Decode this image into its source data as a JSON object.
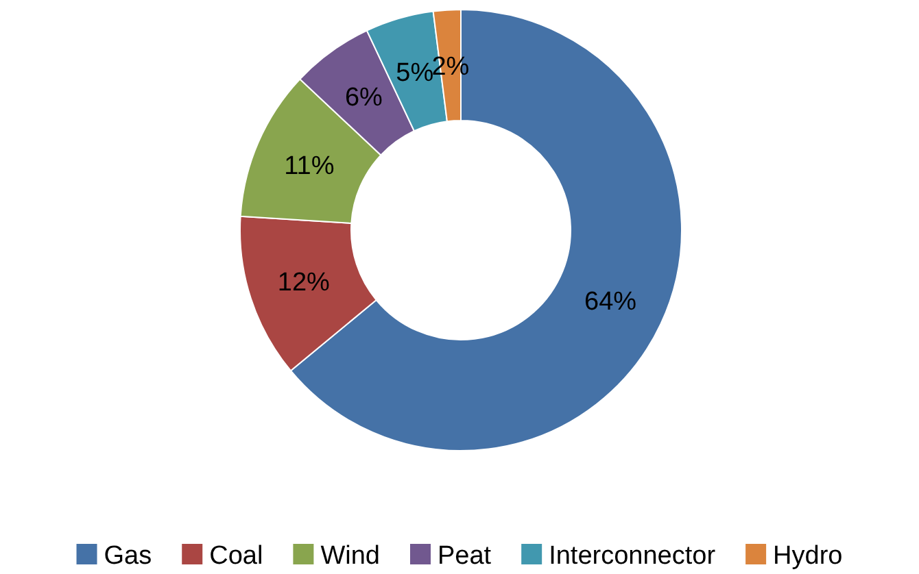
{
  "chart_data": {
    "type": "donut",
    "categories": [
      "Gas",
      "Coal",
      "Wind",
      "Peat",
      "Interconnector",
      "Hydro"
    ],
    "values": [
      64,
      12,
      11,
      6,
      5,
      2
    ],
    "colors": [
      "#4572a7",
      "#aa4643",
      "#89a54e",
      "#71588f",
      "#4198af",
      "#db843d"
    ],
    "value_labels": [
      "64%",
      "12%",
      "11%",
      "6%",
      "5%",
      "2%"
    ],
    "legend": "bottom"
  }
}
